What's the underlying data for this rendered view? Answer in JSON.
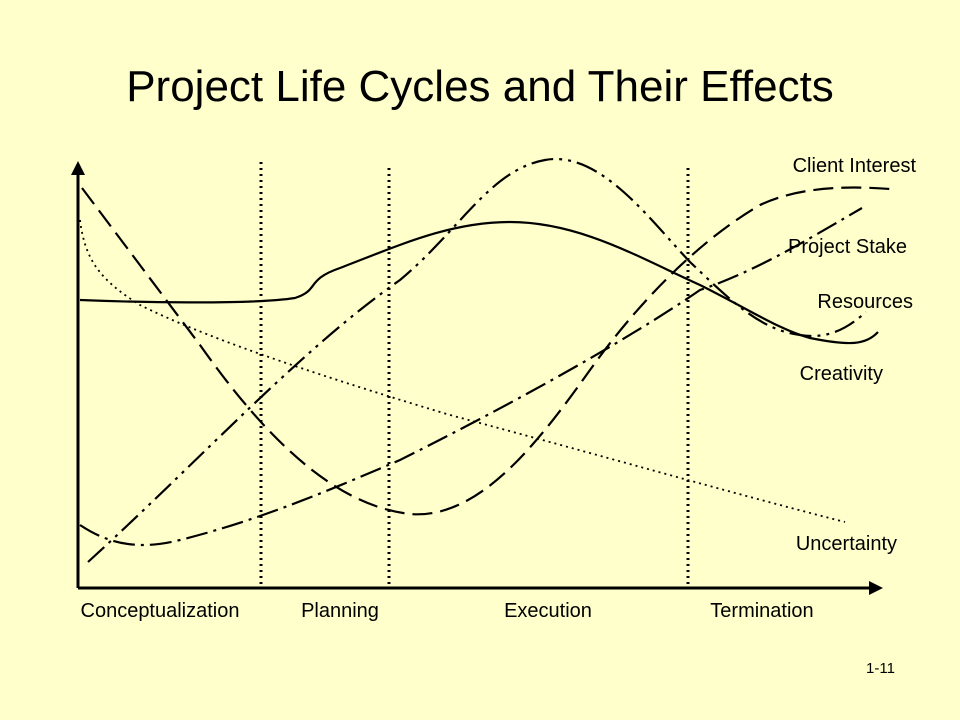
{
  "slide": {
    "title": "Project Life Cycles and Their Effects",
    "slide_number": "1-11"
  },
  "diagram": {
    "phases": [
      "Conceptualization",
      "Planning",
      "Execution",
      "Termination"
    ],
    "curves": {
      "client_interest": "Client Interest",
      "project_stake": "Project Stake",
      "resources": "Resources",
      "creativity": "Creativity",
      "uncertainty": "Uncertainty"
    }
  },
  "colors": {
    "background": "#FFFFCC",
    "ink": "#000000"
  }
}
